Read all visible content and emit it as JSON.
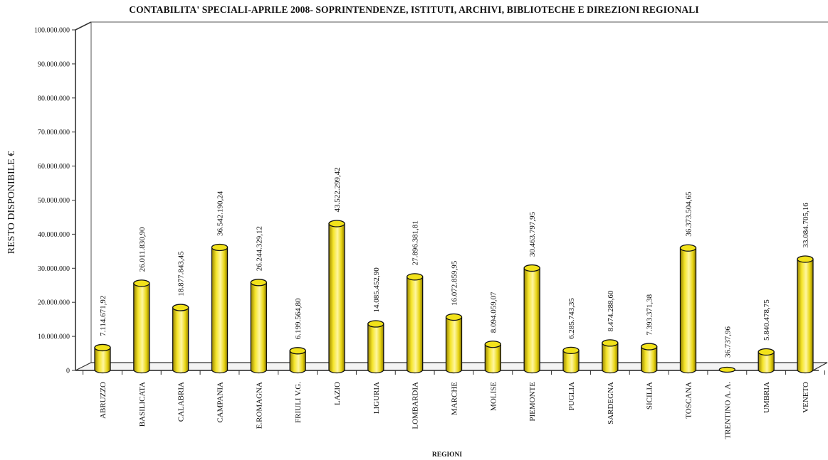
{
  "chart_data": {
    "type": "bar",
    "title": "CONTABILITA' SPECIALI-APRILE 2008- SOPRINTENDENZE, ISTITUTI, ARCHIVI, BIBLIOTECHE E DIREZIONI REGIONALI",
    "xlabel": "REGIONI",
    "ylabel": "RESTO DISPONIBILE €",
    "ylim": [
      0,
      100000000
    ],
    "yticks": [
      0,
      10000000,
      20000000,
      30000000,
      40000000,
      50000000,
      60000000,
      70000000,
      80000000,
      90000000,
      100000000
    ],
    "ytick_labels": [
      "0",
      "10.000.000",
      "20.000.000",
      "30.000.000",
      "40.000.000",
      "50.000.000",
      "60.000.000",
      "70.000.000",
      "80.000.000",
      "90.000.000",
      "100.000.000"
    ],
    "categories": [
      "ABRUZZO",
      "BASILICATA",
      "CALABRIA",
      "CAMPANIA",
      "E.ROMAGNA",
      "FRIULI V.G.",
      "LAZIO",
      "LIGURIA",
      "LOMBARDIA",
      "MARCHE",
      "MOLISE",
      "PIEMONTE",
      "PUGLIA",
      "SARDEGNA",
      "SICILIA",
      "TOSCANA",
      "TRENTINO A. A.",
      "UMBRIA",
      "VENETO"
    ],
    "values": [
      7114671.92,
      26011830.9,
      18877843.45,
      36542190.24,
      26244329.12,
      6199564.8,
      43522299.42,
      14085452.9,
      27896381.81,
      16072859.95,
      8094059.07,
      30463797.95,
      6285743.35,
      8474288.6,
      7393371.38,
      36373504.65,
      36737.96,
      5840478.75,
      33084705.16
    ],
    "value_labels": [
      "7.114.671,92",
      "26.011.830,90",
      "18.877.843,45",
      "36.542.190,24",
      "26.244.329,12",
      "6.199.564,80",
      "43.522.299,42",
      "14.085.452,90",
      "27.896.381,81",
      "16.072.859,95",
      "8.094.059,07",
      "30.463.797,95",
      "6.285.743,35",
      "8.474.288,60",
      "7.393.371,38",
      "36.373.504,65",
      "36.737,96",
      "5.840.478,75",
      "33.084.705,16"
    ],
    "colors": {
      "bar": "#f2e21a",
      "bar_dark": "#a99500",
      "bar_light": "#fff7a0",
      "outline": "#111111"
    },
    "grid": false,
    "legend": "none"
  }
}
